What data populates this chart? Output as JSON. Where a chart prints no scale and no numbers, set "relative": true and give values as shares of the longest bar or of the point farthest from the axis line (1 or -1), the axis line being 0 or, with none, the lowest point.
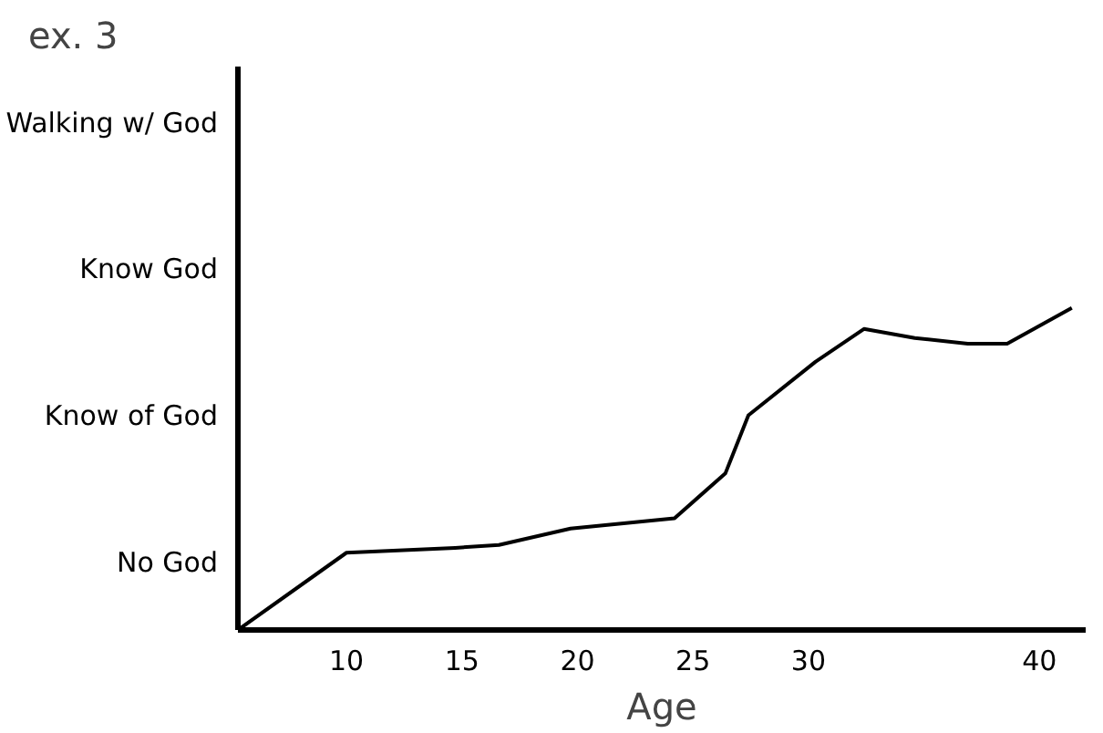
{
  "chart_data": {
    "type": "line",
    "title": "ex. 3",
    "xlabel": "Age",
    "relative": true,
    "x": [
      5.3,
      10,
      14.7,
      16.6,
      19.7,
      24.2,
      26.4,
      27.4,
      30.3,
      32.4,
      34.6,
      36.9,
      38.6,
      41.4
    ],
    "series": [
      {
        "color": "#000000",
        "values": [
          0,
          0.24,
          0.255,
          0.264,
          0.315,
          0.347,
          0.486,
          0.667,
          0.833,
          0.935,
          0.907,
          0.889,
          0.889,
          1
        ]
      }
    ],
    "xlim": [
      5.3,
      42
    ],
    "xticks": [
      10,
      15,
      20,
      25,
      30,
      40
    ],
    "annotations": [
      "Walking w/ God",
      "Know God",
      "Know of God",
      "No God"
    ],
    "grid": false,
    "marker": "none",
    "line_style": "solid"
  }
}
